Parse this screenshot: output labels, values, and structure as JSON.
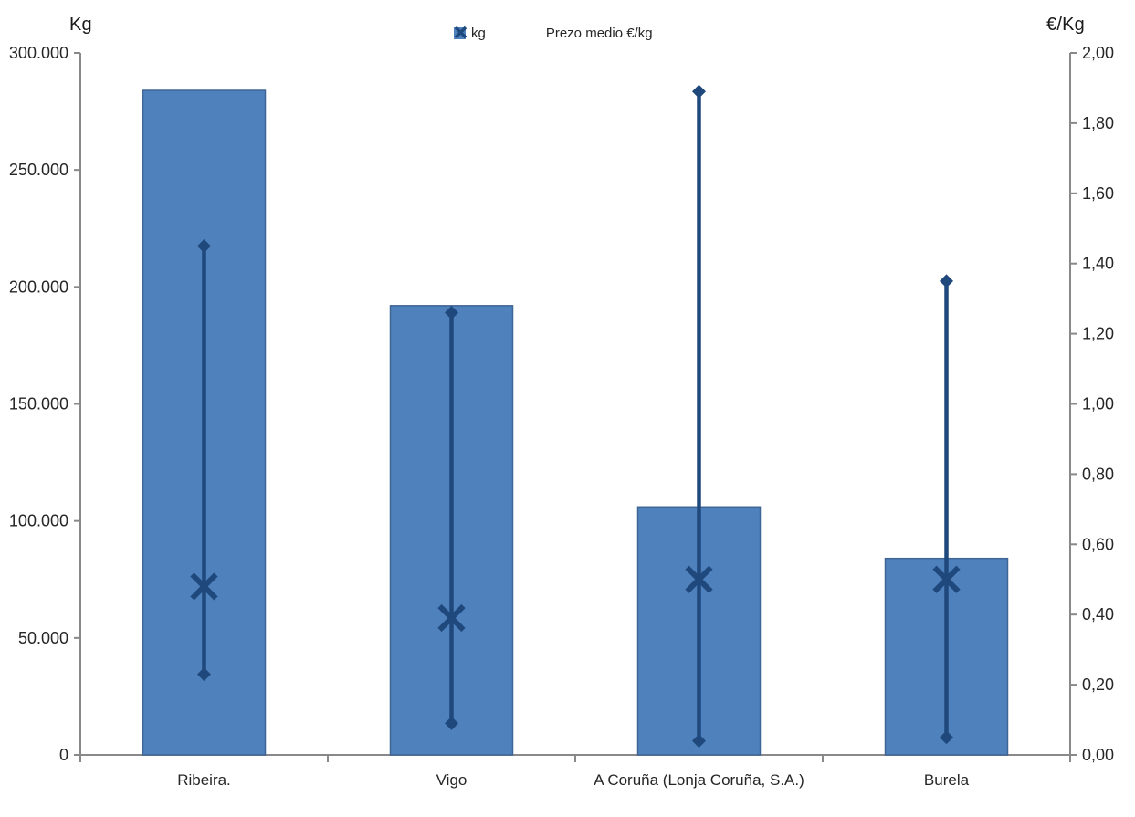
{
  "chart_data": {
    "type": "combo",
    "title": "",
    "categories": [
      "Ribeira.",
      "Vigo",
      "A Coruña (Lonja Coruña, S.A.)",
      "Burela"
    ],
    "series": [
      {
        "name": "kg",
        "type": "bar",
        "axis": "left",
        "color": "#4F81BD",
        "border_color": "#3F6594",
        "values": [
          284000,
          192000,
          106000,
          84000
        ]
      },
      {
        "name": "Prezo medio €/kg",
        "type": "hilo-x",
        "axis": "right",
        "color": "#1F497D",
        "avg": [
          0.48,
          0.39,
          0.5,
          0.5
        ],
        "high": [
          1.45,
          1.26,
          1.89,
          1.35
        ],
        "low": [
          0.23,
          0.09,
          0.04,
          0.05
        ]
      }
    ],
    "left_axis": {
      "title": "Kg",
      "min": 0,
      "max": 300000,
      "ticks": [
        {
          "value": 300000,
          "label": "300.000"
        },
        {
          "value": 250000,
          "label": "250.000"
        },
        {
          "value": 200000,
          "label": "200.000"
        },
        {
          "value": 150000,
          "label": "150.000"
        },
        {
          "value": 100000,
          "label": "100.000"
        },
        {
          "value": 50000,
          "label": "50.000"
        },
        {
          "value": 0,
          "label": "0"
        }
      ]
    },
    "right_axis": {
      "title": "€/Kg",
      "min": 0,
      "max": 2,
      "ticks": [
        {
          "value": 2.0,
          "label": "2,00"
        },
        {
          "value": 1.8,
          "label": "1,80"
        },
        {
          "value": 1.6,
          "label": "1,60"
        },
        {
          "value": 1.4,
          "label": "1,40"
        },
        {
          "value": 1.2,
          "label": "1,20"
        },
        {
          "value": 1.0,
          "label": "1,00"
        },
        {
          "value": 0.8,
          "label": "0,80"
        },
        {
          "value": 0.6,
          "label": "0,60"
        },
        {
          "value": 0.4,
          "label": "0,40"
        },
        {
          "value": 0.2,
          "label": "0,20"
        },
        {
          "value": 0.0,
          "label": "0,00"
        }
      ]
    },
    "legend": [
      {
        "label": "kg",
        "marker": "square"
      },
      {
        "label": "Prezo medio €/kg",
        "marker": "x"
      }
    ],
    "grid": "off",
    "legend_position": "top-center",
    "axis_color": "#898989",
    "text_color": "#262626"
  }
}
